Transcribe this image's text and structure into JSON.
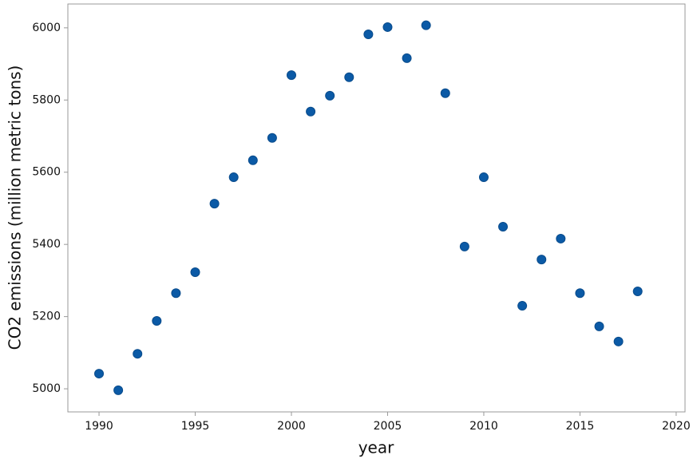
{
  "chart_data": {
    "type": "scatter",
    "x_label": "year",
    "y_label": "CO2 emissions (million metric tons)",
    "color": "#0b5aa6",
    "x": [
      1990,
      1991,
      1992,
      1993,
      1994,
      1995,
      1996,
      1997,
      1998,
      1999,
      2000,
      2001,
      2002,
      2003,
      2004,
      2005,
      2006,
      2007,
      2008,
      2009,
      2010,
      2011,
      2012,
      2013,
      2014,
      2015,
      2016,
      2017,
      2018
    ],
    "values": [
      5042,
      4996,
      5097,
      5188,
      5265,
      5323,
      5513,
      5586,
      5633,
      5695,
      5869,
      5768,
      5812,
      5863,
      5982,
      6002,
      5916,
      6007,
      5819,
      5394,
      5586,
      5449,
      5230,
      5358,
      5416,
      5265,
      5173,
      5131,
      5270
    ],
    "xlim": [
      1988.38,
      2020.46
    ],
    "xticks": [
      1990,
      1995,
      2000,
      2005,
      2010,
      2015,
      2020
    ],
    "ylim": [
      4936,
      6066
    ],
    "yticks": [
      5000,
      5200,
      5400,
      5600,
      5800,
      6000
    ]
  }
}
